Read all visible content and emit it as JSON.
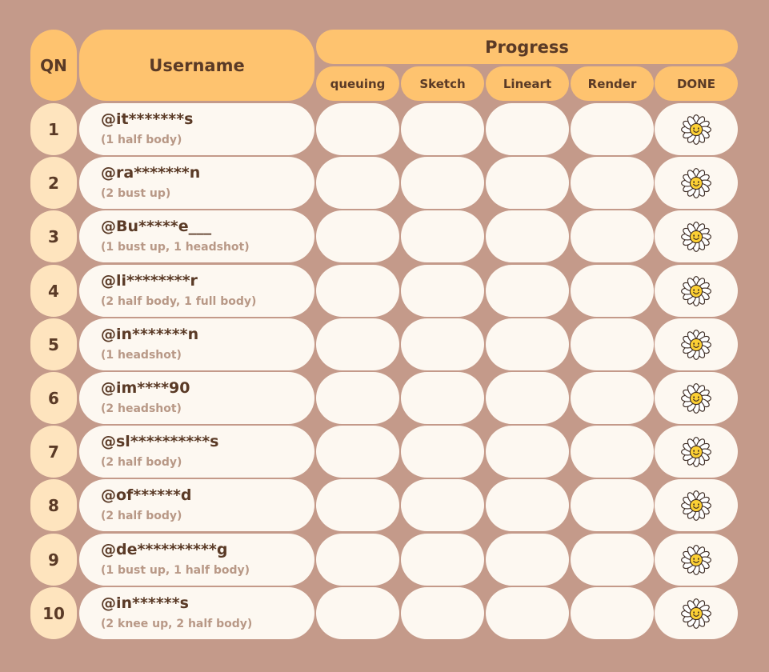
{
  "headers": {
    "qn": "QN",
    "username": "Username",
    "progress": "Progress",
    "stages": [
      "queuing",
      "Sketch",
      "Lineart",
      "Render",
      "DONE"
    ]
  },
  "rows": [
    {
      "qn": "1",
      "username": "@it*******s",
      "order": "(1 half body)",
      "status": "DONE"
    },
    {
      "qn": "2",
      "username": "@ra*******n",
      "order": "(2 bust up)",
      "status": "DONE"
    },
    {
      "qn": "3",
      "username": "@Bu*****e___",
      "order": "(1 bust up, 1 headshot)",
      "status": "DONE"
    },
    {
      "qn": "4",
      "username": "@li********r",
      "order": "(2 half body, 1 full body)",
      "status": "DONE"
    },
    {
      "qn": "5",
      "username": "@in*******n",
      "order": "(1 headshot)",
      "status": "DONE"
    },
    {
      "qn": "6",
      "username": "@im****90",
      "order": "(2 headshot)",
      "status": "DONE"
    },
    {
      "qn": "7",
      "username": "@sl**********s",
      "order": "(2 half body)",
      "status": "DONE"
    },
    {
      "qn": "8",
      "username": "@of******d",
      "order": "(2 half body)",
      "status": "DONE"
    },
    {
      "qn": "9",
      "username": "@de**********g",
      "order": "(1 bust up, 1 half body)",
      "status": "DONE"
    },
    {
      "qn": "10",
      "username": "@in******s",
      "order": "(2 knee up, 2 half body)",
      "status": "DONE"
    }
  ],
  "status_icon": "daisy-flower-smiley-icon",
  "colors": {
    "background": "#c49a8a",
    "header": "#fec36f",
    "qn_cell": "#fee4be",
    "cell": "#fdf8f1",
    "text_dark": "#5a3a26",
    "text_muted": "#b89886"
  }
}
